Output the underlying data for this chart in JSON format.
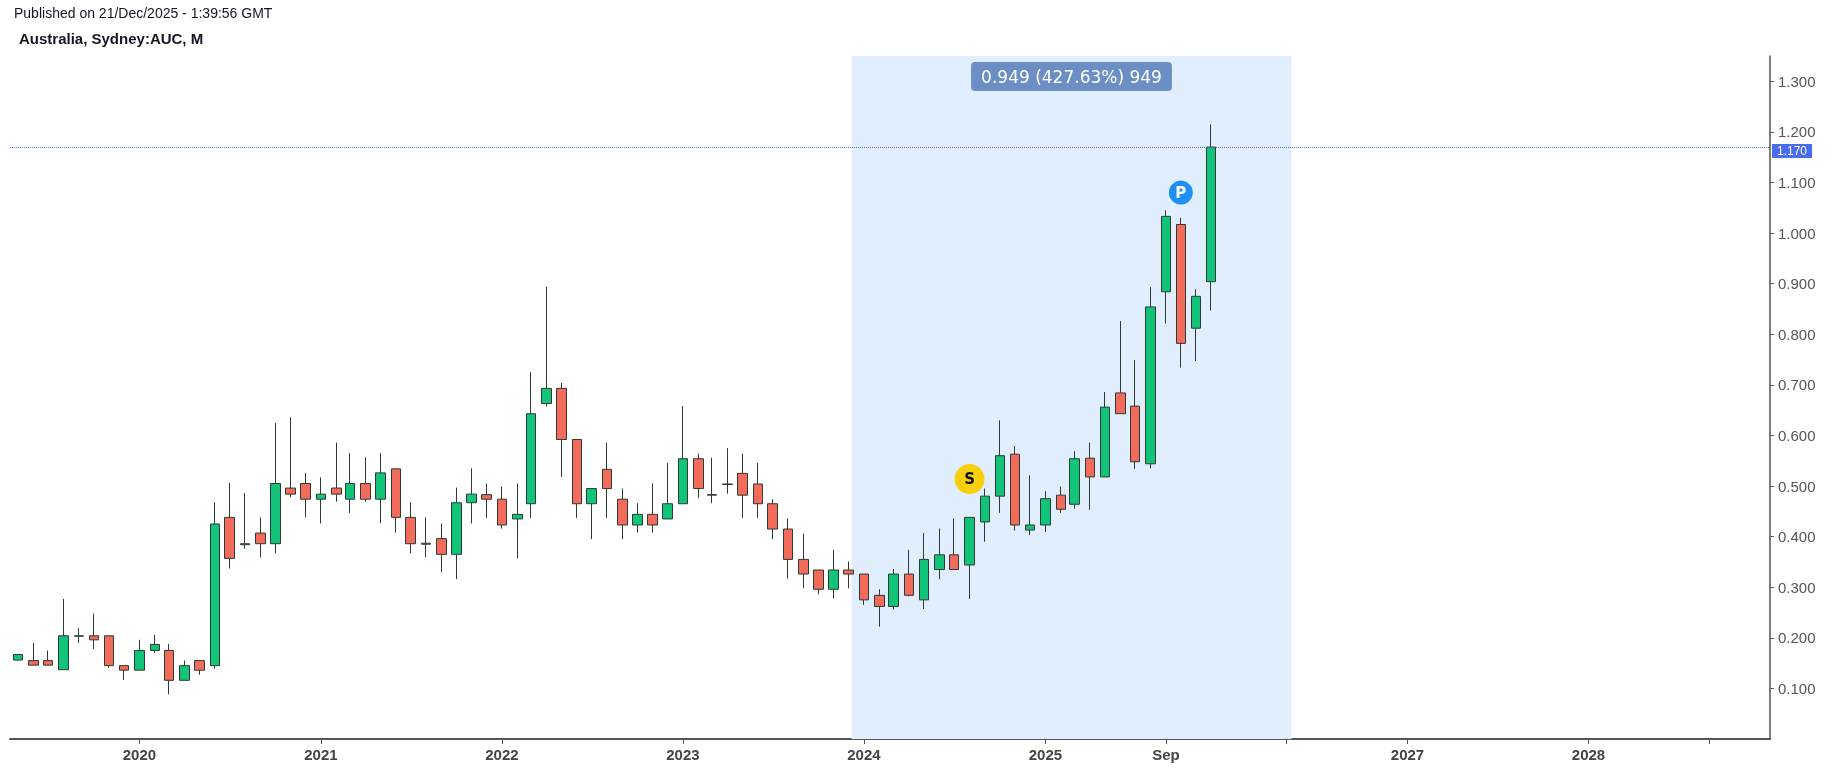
{
  "chart_data": {
    "type": "candlestick",
    "title": "Australia, Sydney:AUC, M",
    "annotations": [
      "Published on 21/Dec/2025 - 1:39:56 GMT",
      {
        "text": "S",
        "x": "2024-08",
        "y": 0.514
      },
      {
        "text": "P",
        "x": "2025-10",
        "y": 1.08
      }
    ],
    "x": [
      "2019-05",
      "2019-06",
      "2019-07",
      "2019-08",
      "2019-09",
      "2019-10",
      "2019-11",
      "2019-12",
      "2020-01",
      "2020-02",
      "2020-03",
      "2020-04",
      "2020-05",
      "2020-06",
      "2020-07",
      "2020-08",
      "2020-09",
      "2020-10",
      "2020-11",
      "2020-12",
      "2021-01",
      "2021-02",
      "2021-03",
      "2021-04",
      "2021-05",
      "2021-06",
      "2021-07",
      "2021-08",
      "2021-09",
      "2021-10",
      "2021-11",
      "2021-12",
      "2022-01",
      "2022-02",
      "2022-03",
      "2022-04",
      "2022-05",
      "2022-06",
      "2022-07",
      "2022-08",
      "2022-09",
      "2022-10",
      "2022-11",
      "2022-12",
      "2023-01",
      "2023-02",
      "2023-03",
      "2023-04",
      "2023-05",
      "2023-06",
      "2023-07",
      "2023-08",
      "2023-09",
      "2023-10",
      "2023-11",
      "2023-12",
      "2024-01",
      "2024-02",
      "2024-03",
      "2024-04",
      "2024-05",
      "2024-06",
      "2024-07",
      "2024-08",
      "2024-09",
      "2024-10",
      "2024-11",
      "2024-12",
      "2025-01",
      "2025-02",
      "2025-03",
      "2025-04",
      "2025-05",
      "2025-06",
      "2025-07",
      "2025-08",
      "2025-09",
      "2025-10",
      "2025-11",
      "2025-12"
    ],
    "ohlc": [
      [
        0.156,
        0.168,
        0.155,
        0.167
      ],
      [
        0.155,
        0.19,
        0.146,
        0.146
      ],
      [
        0.155,
        0.175,
        0.146,
        0.146
      ],
      [
        0.137,
        0.277,
        0.137,
        0.204
      ],
      [
        0.203,
        0.219,
        0.19,
        0.204
      ],
      [
        0.204,
        0.248,
        0.178,
        0.196
      ],
      [
        0.204,
        0.204,
        0.141,
        0.145
      ],
      [
        0.145,
        0.145,
        0.117,
        0.136
      ],
      [
        0.136,
        0.196,
        0.136,
        0.175
      ],
      [
        0.175,
        0.206,
        0.17,
        0.187
      ],
      [
        0.175,
        0.188,
        0.088,
        0.116
      ],
      [
        0.116,
        0.155,
        0.116,
        0.145
      ],
      [
        0.155,
        0.155,
        0.127,
        0.136
      ],
      [
        0.145,
        0.468,
        0.139,
        0.425
      ],
      [
        0.438,
        0.506,
        0.337,
        0.357
      ],
      [
        0.384,
        0.486,
        0.376,
        0.386
      ],
      [
        0.407,
        0.438,
        0.359,
        0.386
      ],
      [
        0.386,
        0.625,
        0.367,
        0.505
      ],
      [
        0.496,
        0.636,
        0.478,
        0.484
      ],
      [
        0.505,
        0.526,
        0.438,
        0.474
      ],
      [
        0.474,
        0.517,
        0.426,
        0.484
      ],
      [
        0.496,
        0.586,
        0.469,
        0.484
      ],
      [
        0.474,
        0.565,
        0.447,
        0.505
      ],
      [
        0.505,
        0.557,
        0.469,
        0.474
      ],
      [
        0.474,
        0.565,
        0.426,
        0.526
      ],
      [
        0.534,
        0.534,
        0.408,
        0.438
      ],
      [
        0.438,
        0.468,
        0.367,
        0.386
      ],
      [
        0.387,
        0.438,
        0.359,
        0.385
      ],
      [
        0.396,
        0.426,
        0.33,
        0.365
      ],
      [
        0.365,
        0.497,
        0.316,
        0.467
      ],
      [
        0.467,
        0.535,
        0.426,
        0.484
      ],
      [
        0.483,
        0.505,
        0.437,
        0.474
      ],
      [
        0.474,
        0.499,
        0.416,
        0.423
      ],
      [
        0.435,
        0.505,
        0.357,
        0.444
      ],
      [
        0.465,
        0.725,
        0.437,
        0.643
      ],
      [
        0.663,
        0.894,
        0.657,
        0.693
      ],
      [
        0.693,
        0.704,
        0.518,
        0.592
      ],
      [
        0.592,
        0.592,
        0.437,
        0.465
      ],
      [
        0.465,
        0.495,
        0.395,
        0.495
      ],
      [
        0.533,
        0.586,
        0.437,
        0.495
      ],
      [
        0.474,
        0.495,
        0.395,
        0.423
      ],
      [
        0.423,
        0.466,
        0.408,
        0.444
      ],
      [
        0.444,
        0.505,
        0.408,
        0.423
      ],
      [
        0.435,
        0.546,
        0.435,
        0.465
      ],
      [
        0.465,
        0.658,
        0.465,
        0.554
      ],
      [
        0.554,
        0.564,
        0.476,
        0.495
      ],
      [
        0.483,
        0.556,
        0.466,
        0.482
      ],
      [
        0.503,
        0.575,
        0.485,
        0.504
      ],
      [
        0.525,
        0.564,
        0.437,
        0.482
      ],
      [
        0.504,
        0.546,
        0.437,
        0.465
      ],
      [
        0.465,
        0.474,
        0.395,
        0.415
      ],
      [
        0.415,
        0.436,
        0.317,
        0.355
      ],
      [
        0.355,
        0.406,
        0.298,
        0.326
      ],
      [
        0.334,
        0.334,
        0.286,
        0.296
      ],
      [
        0.296,
        0.374,
        0.278,
        0.334
      ],
      [
        0.334,
        0.351,
        0.298,
        0.326
      ],
      [
        0.326,
        0.326,
        0.265,
        0.275
      ],
      [
        0.284,
        0.296,
        0.222,
        0.262
      ],
      [
        0.262,
        0.336,
        0.256,
        0.326
      ],
      [
        0.326,
        0.374,
        0.282,
        0.284
      ],
      [
        0.275,
        0.407,
        0.257,
        0.355
      ],
      [
        0.335,
        0.416,
        0.316,
        0.364
      ],
      [
        0.364,
        0.436,
        0.335,
        0.335
      ],
      [
        0.344,
        0.438,
        0.277,
        0.438
      ],
      [
        0.429,
        0.495,
        0.39,
        0.48
      ],
      [
        0.48,
        0.63,
        0.447,
        0.56
      ],
      [
        0.563,
        0.579,
        0.412,
        0.423
      ],
      [
        0.413,
        0.521,
        0.403,
        0.423
      ],
      [
        0.423,
        0.49,
        0.409,
        0.475
      ],
      [
        0.482,
        0.499,
        0.447,
        0.454
      ],
      [
        0.464,
        0.569,
        0.455,
        0.554
      ],
      [
        0.555,
        0.586,
        0.453,
        0.518
      ],
      [
        0.518,
        0.686,
        0.518,
        0.656
      ],
      [
        0.684,
        0.826,
        0.643,
        0.643
      ],
      [
        0.658,
        0.749,
        0.534,
        0.548
      ],
      [
        0.544,
        0.893,
        0.535,
        0.854
      ],
      [
        0.884,
        1.045,
        0.821,
        1.033
      ],
      [
        1.017,
        1.03,
        0.734,
        0.782
      ],
      [
        0.812,
        0.889,
        0.747,
        0.875
      ],
      [
        0.904,
        1.215,
        0.847,
        1.17
      ]
    ],
    "colors": [
      "#12c47a",
      "#f26b5b",
      "#f26b5b",
      "#12c47a",
      "#12c47a",
      "#f26b5b",
      "#f26b5b",
      "#f26b5b",
      "#12c47a",
      "#12c47a",
      "#f26b5b",
      "#12c47a",
      "#f26b5b",
      "#12c47a",
      "#f26b5b",
      "#12c47a",
      "#f26b5b",
      "#12c47a",
      "#f26b5b",
      "#f26b5b",
      "#12c47a",
      "#f26b5b",
      "#12c47a",
      "#f26b5b",
      "#12c47a",
      "#f26b5b",
      "#f26b5b",
      "#f26b5b",
      "#f26b5b",
      "#12c47a",
      "#12c47a",
      "#f26b5b",
      "#f26b5b",
      "#12c47a",
      "#12c47a",
      "#12c47a",
      "#f26b5b",
      "#f26b5b",
      "#12c47a",
      "#f26b5b",
      "#f26b5b",
      "#12c47a",
      "#f26b5b",
      "#12c47a",
      "#12c47a",
      "#f26b5b",
      "#f26b5b",
      "#12c47a",
      "#f26b5b",
      "#f26b5b",
      "#f26b5b",
      "#f26b5b",
      "#f26b5b",
      "#f26b5b",
      "#12c47a",
      "#f26b5b",
      "#f26b5b",
      "#f26b5b",
      "#12c47a",
      "#f26b5b",
      "#12c47a",
      "#12c47a",
      "#f26b5b",
      "#12c47a",
      "#12c47a",
      "#12c47a",
      "#f26b5b",
      "#12c47a",
      "#12c47a",
      "#f26b5b",
      "#12c47a",
      "#f26b5b",
      "#12c47a",
      "#f26b5b",
      "#f26b5b",
      "#12c47a",
      "#12c47a",
      "#f26b5b",
      "#12c47a",
      "#12c47a"
    ],
    "xlim": [
      "2019-04-15",
      "2029-01"
    ],
    "xticks": [
      "2020",
      "2021",
      "2022",
      "2023",
      "2024",
      "2025",
      {
        "value": "2025-09",
        "label": "Sep"
      },
      {
        "value": "2026-05",
        "label": null
      },
      "2027",
      "2028",
      {
        "value": "2028-09",
        "label": null
      }
    ],
    "ylim": [
      0,
      1.35
    ],
    "yticks": [
      {
        "value": 0.1,
        "label": "0.100"
      },
      {
        "value": 0.2,
        "label": "0.200"
      },
      {
        "value": 0.3,
        "label": "0.300"
      },
      {
        "value": 0.4,
        "label": "0.400"
      },
      {
        "value": 0.5,
        "label": "0.500"
      },
      {
        "value": 0.6,
        "label": "0.600"
      },
      {
        "value": 0.7,
        "label": "0.700"
      },
      {
        "value": 0.8,
        "label": "0.800"
      },
      {
        "value": 0.9,
        "label": "0.900"
      },
      {
        "value": 1.0,
        "label": "1.000"
      },
      {
        "value": 1.1,
        "label": "1.100"
      },
      {
        "value": 1.2,
        "label": "1.200"
      },
      {
        "value": 1.3,
        "label": "1.300"
      }
    ],
    "ref_lines": [
      {
        "axis": "y",
        "value": 1.17,
        "label": "1.170",
        "color": "#4a6cf0",
        "line_style": "dotted"
      }
    ],
    "bands": [
      {
        "axis": "x",
        "from": "2023-12-07",
        "to": "2026-05-12",
        "label": "0.949 (427.63%) 949",
        "color": "#e1eefd"
      }
    ]
  }
}
